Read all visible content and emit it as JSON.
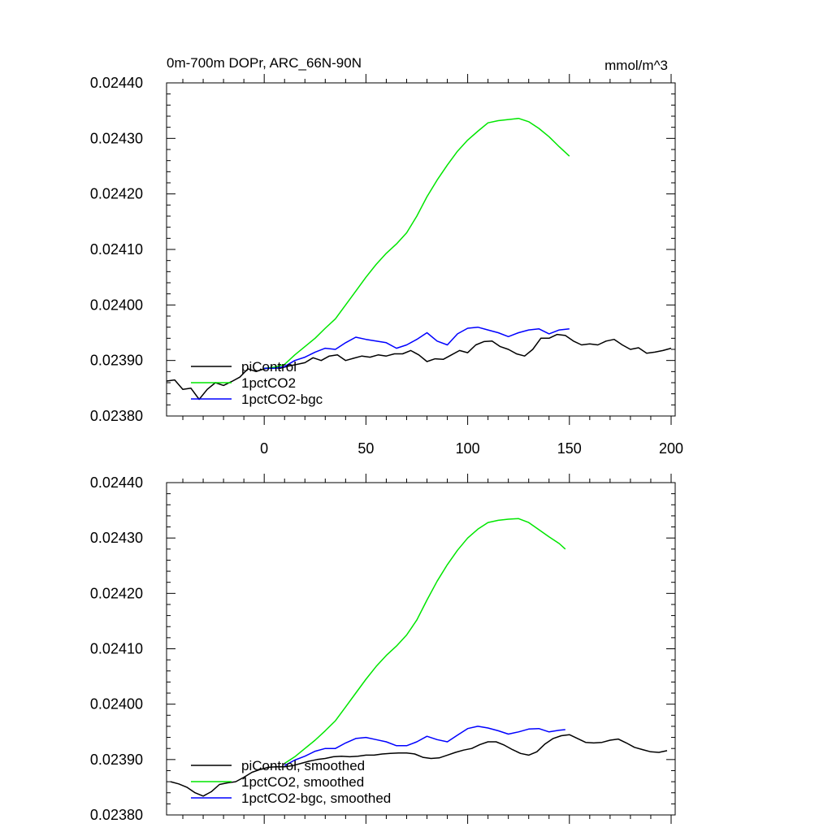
{
  "figure": {
    "title_left": "0m-700m DOPr, ARC_66N-90N",
    "title_right": "mmol/m^3"
  },
  "chart_data": [
    {
      "type": "line",
      "title": "0m-700m DOPr, ARC_66N-90N",
      "units": "mmol/m^3",
      "xlim": [
        -48,
        202
      ],
      "ylim": [
        0.0238,
        0.0244
      ],
      "xticks": [
        0,
        50,
        100,
        150,
        200
      ],
      "xtick_labels": [
        "0",
        "50",
        "100",
        "150",
        "200"
      ],
      "yticks": [
        0.0238,
        0.0239,
        0.024,
        0.0241,
        0.0242,
        0.0243,
        0.0244
      ],
      "ytick_labels": [
        "0.02380",
        "0.02390",
        "0.02400",
        "0.02410",
        "0.02420",
        "0.02430",
        "0.02440"
      ],
      "legend_position": "lower-left",
      "series": [
        {
          "name": "piControl",
          "color": "#000000",
          "x": [
            -48,
            -44,
            -40,
            -36,
            -32,
            -28,
            -24,
            -20,
            -16,
            -12,
            -8,
            -4,
            0,
            4,
            8,
            12,
            16,
            20,
            24,
            28,
            32,
            36,
            40,
            44,
            48,
            52,
            56,
            60,
            64,
            68,
            72,
            76,
            80,
            84,
            88,
            92,
            96,
            100,
            104,
            108,
            112,
            116,
            120,
            124,
            128,
            132,
            136,
            140,
            144,
            148,
            152,
            156,
            160,
            164,
            168,
            172,
            176,
            180,
            184,
            188,
            192,
            196,
            200
          ],
          "y": [
            0.023863,
            0.023865,
            0.023848,
            0.02385,
            0.02383,
            0.023848,
            0.02386,
            0.023855,
            0.023862,
            0.02387,
            0.023885,
            0.02388,
            0.023885,
            0.023887,
            0.023886,
            0.02389,
            0.023893,
            0.023896,
            0.023905,
            0.0239,
            0.023908,
            0.02391,
            0.0239,
            0.023904,
            0.023908,
            0.023906,
            0.02391,
            0.023908,
            0.023912,
            0.023912,
            0.023918,
            0.02391,
            0.023898,
            0.023903,
            0.023902,
            0.02391,
            0.023918,
            0.023914,
            0.023928,
            0.023934,
            0.023935,
            0.023925,
            0.02392,
            0.023912,
            0.023908,
            0.02392,
            0.02394,
            0.02394,
            0.023947,
            0.023945,
            0.023935,
            0.023928,
            0.02393,
            0.023928,
            0.023935,
            0.023938,
            0.023928,
            0.02392,
            0.023923,
            0.023913,
            0.023915,
            0.023918,
            0.023922
          ]
        },
        {
          "name": "1pctCO2",
          "color": "#00e600",
          "x": [
            0,
            5,
            10,
            15,
            20,
            25,
            30,
            35,
            40,
            45,
            50,
            55,
            60,
            65,
            70,
            75,
            80,
            85,
            90,
            95,
            100,
            105,
            110,
            115,
            120,
            125,
            130,
            135,
            140,
            145,
            150
          ],
          "y": [
            0.023886,
            0.023888,
            0.023893,
            0.02391,
            0.023925,
            0.02394,
            0.023958,
            0.023975,
            0.024,
            0.024025,
            0.02405,
            0.024073,
            0.024093,
            0.02411,
            0.02413,
            0.02416,
            0.024195,
            0.024225,
            0.024252,
            0.024277,
            0.024297,
            0.024313,
            0.024328,
            0.024332,
            0.024334,
            0.024336,
            0.02433,
            0.024318,
            0.024303,
            0.024285,
            0.024268
          ]
        },
        {
          "name": "1pctCO2-bgc",
          "color": "#0000ff",
          "x": [
            0,
            5,
            10,
            15,
            20,
            25,
            30,
            35,
            40,
            45,
            50,
            55,
            60,
            65,
            70,
            75,
            80,
            85,
            90,
            95,
            100,
            105,
            110,
            115,
            120,
            125,
            130,
            135,
            140,
            145,
            150
          ],
          "y": [
            0.023886,
            0.023886,
            0.023889,
            0.0239,
            0.023906,
            0.023915,
            0.023922,
            0.02392,
            0.023932,
            0.023942,
            0.023938,
            0.023935,
            0.023932,
            0.023922,
            0.023928,
            0.023938,
            0.02395,
            0.023935,
            0.023928,
            0.023948,
            0.023958,
            0.02396,
            0.023955,
            0.02395,
            0.023943,
            0.02395,
            0.023955,
            0.023957,
            0.023948,
            0.023955,
            0.023957
          ]
        }
      ]
    },
    {
      "type": "line",
      "title": "",
      "xlim": [
        -48,
        202
      ],
      "ylim": [
        0.0238,
        0.0244
      ],
      "xticks": [
        0,
        50,
        100,
        150,
        200
      ],
      "yticks": [
        0.0238,
        0.0239,
        0.024,
        0.0241,
        0.0242,
        0.0243,
        0.0244
      ],
      "ytick_labels": [
        "0.02380",
        "0.02390",
        "0.02400",
        "0.02410",
        "0.02420",
        "0.02430",
        "0.02440"
      ],
      "legend_position": "lower-left",
      "series": [
        {
          "name": "piControl, smoothed",
          "color": "#000000",
          "x": [
            -46,
            -42,
            -38,
            -34,
            -30,
            -26,
            -22,
            -18,
            -14,
            -10,
            -6,
            -2,
            2,
            6,
            10,
            14,
            18,
            22,
            26,
            30,
            34,
            38,
            42,
            46,
            50,
            54,
            58,
            62,
            66,
            70,
            74,
            78,
            82,
            86,
            90,
            94,
            98,
            102,
            106,
            110,
            114,
            118,
            122,
            126,
            130,
            134,
            138,
            142,
            146,
            150,
            154,
            158,
            162,
            166,
            170,
            174,
            178,
            182,
            186,
            190,
            194,
            198
          ],
          "y": [
            0.02386,
            0.023856,
            0.02385,
            0.02384,
            0.023834,
            0.023842,
            0.023855,
            0.023858,
            0.02386,
            0.023868,
            0.023877,
            0.023882,
            0.023886,
            0.023887,
            0.023887,
            0.023889,
            0.023893,
            0.023897,
            0.0239,
            0.023902,
            0.023905,
            0.023906,
            0.023905,
            0.023906,
            0.023908,
            0.023908,
            0.02391,
            0.023911,
            0.023912,
            0.023912,
            0.02391,
            0.023904,
            0.023902,
            0.023903,
            0.023908,
            0.023913,
            0.023917,
            0.02392,
            0.023927,
            0.023932,
            0.023932,
            0.023926,
            0.023918,
            0.023911,
            0.023908,
            0.023914,
            0.023928,
            0.023938,
            0.023943,
            0.023945,
            0.023938,
            0.023931,
            0.02393,
            0.023931,
            0.023935,
            0.023937,
            0.02393,
            0.023922,
            0.023918,
            0.023914,
            0.023913,
            0.023916
          ]
        },
        {
          "name": "1pctCO2, smoothed",
          "color": "#00e600",
          "x": [
            10,
            15,
            20,
            25,
            30,
            35,
            40,
            45,
            50,
            55,
            60,
            65,
            70,
            75,
            80,
            85,
            90,
            95,
            100,
            105,
            110,
            115,
            120,
            125,
            130,
            135,
            140,
            145,
            148
          ],
          "y": [
            0.023893,
            0.023905,
            0.02392,
            0.023935,
            0.023952,
            0.02397,
            0.023995,
            0.02402,
            0.024045,
            0.024068,
            0.024088,
            0.024105,
            0.024125,
            0.024152,
            0.024188,
            0.024222,
            0.024252,
            0.024278,
            0.0243,
            0.024316,
            0.024328,
            0.024332,
            0.024334,
            0.024335,
            0.024328,
            0.024315,
            0.024302,
            0.02429,
            0.02428
          ]
        },
        {
          "name": "1pctCO2-bgc, smoothed",
          "color": "#0000ff",
          "x": [
            10,
            15,
            20,
            25,
            30,
            35,
            40,
            45,
            50,
            55,
            60,
            65,
            70,
            75,
            80,
            85,
            90,
            95,
            100,
            105,
            110,
            115,
            120,
            125,
            130,
            135,
            140,
            145,
            148
          ],
          "y": [
            0.023889,
            0.023899,
            0.023906,
            0.023915,
            0.02392,
            0.02392,
            0.02393,
            0.023938,
            0.02394,
            0.023936,
            0.023932,
            0.023925,
            0.023925,
            0.023932,
            0.023942,
            0.023936,
            0.023932,
            0.023944,
            0.023956,
            0.02396,
            0.023957,
            0.023952,
            0.023946,
            0.02395,
            0.023955,
            0.023956,
            0.02395,
            0.023953,
            0.023954
          ]
        }
      ]
    }
  ]
}
